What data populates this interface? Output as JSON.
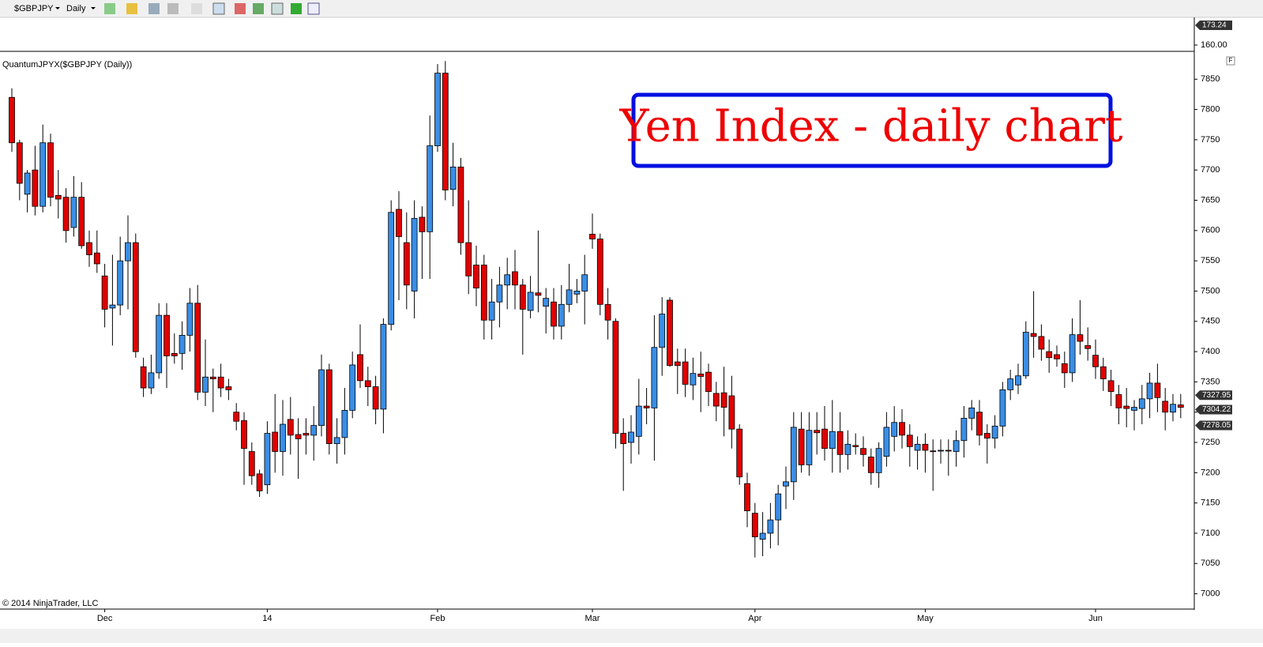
{
  "toolbar": {
    "symbol": "$GBPJPY",
    "interval": "Daily"
  },
  "upper_panel": {
    "ylim": [
      156.3,
      176.95
    ],
    "yticks": [
      {
        "value": 160,
        "label": "160.00"
      }
    ],
    "last_price": 173.24
  },
  "chart_data": {
    "type": "candlestick",
    "indicator": "QuantumJPYX($GBPJPY (Daily))",
    "annotation": "Yen Index - daily chart",
    "copyright": "© 2014 NinjaTrader, LLC",
    "up_color": "#3a8ee6",
    "down_color": "#e00000",
    "categories": [
      null,
      null,
      null,
      null,
      null,
      null,
      null,
      null,
      null,
      null,
      null,
      null,
      "Dec",
      null,
      null,
      null,
      null,
      null,
      null,
      null,
      null,
      null,
      null,
      null,
      null,
      null,
      null,
      null,
      null,
      null,
      null,
      null,
      null,
      "14",
      null,
      null,
      null,
      null,
      null,
      null,
      null,
      null,
      null,
      null,
      null,
      null,
      null,
      null,
      null,
      null,
      null,
      null,
      null,
      null,
      null,
      "Feb",
      null,
      null,
      null,
      null,
      null,
      null,
      null,
      null,
      null,
      null,
      null,
      null,
      null,
      null,
      null,
      null,
      null,
      null,
      null,
      "Mar",
      null,
      null,
      null,
      null,
      null,
      null,
      null,
      null,
      null,
      null,
      null,
      null,
      null,
      null,
      null,
      null,
      null,
      null,
      null,
      null,
      "Apr",
      null,
      null,
      null,
      null,
      null,
      null,
      null,
      null,
      null,
      null,
      null,
      null,
      null,
      null,
      null,
      null,
      null,
      null,
      null,
      null,
      null,
      "May",
      null,
      null,
      null,
      null,
      null,
      null,
      null,
      null,
      null,
      null,
      null,
      null,
      null,
      null,
      null,
      null,
      null,
      null,
      null,
      null,
      null,
      "Jun",
      null,
      null,
      null,
      null,
      null,
      null,
      null,
      null,
      null,
      null,
      null
    ],
    "open": [
      7820,
      7745,
      7660,
      7700,
      7640,
      7745,
      7658,
      7655,
      7605,
      7655,
      7580,
      7563,
      7525,
      7472,
      7477,
      7550,
      7580,
      7375,
      7340,
      7365,
      7460,
      7397,
      7397,
      7427,
      7480,
      7333,
      7358,
      7358,
      7342,
      7300,
      7286,
      7235,
      7198,
      7180,
      7267,
      7235,
      7288,
      7263,
      7265,
      7262,
      7278,
      7370,
      7248,
      7258,
      7303,
      7395,
      7352,
      7342,
      7305,
      7445,
      7635,
      7580,
      7500,
      7622,
      7598,
      7740,
      7860,
      7668,
      7705,
      7580,
      7543,
      7543,
      7452,
      7482,
      7510,
      7532,
      7510,
      7468,
      7497,
      7475,
      7482,
      7442,
      7478,
      7495,
      7500,
      7594,
      7586,
      7478,
      7450,
      7265,
      7250,
      7260,
      7310,
      7307,
      7407,
      7485,
      7383,
      7383,
      7345,
      7363,
      7366,
      7331,
      7332,
      7327,
      7272,
      7182,
      7133,
      7090,
      7100,
      7122,
      7178,
      7185,
      7272,
      7213,
      7270,
      7272,
      7240,
      7268,
      7230,
      7245,
      7240,
      7226,
      7200,
      7227,
      7260,
      7283,
      7262,
      7237,
      7247,
      7236,
      7236,
      7237,
      7235,
      7253,
      7290,
      7300,
      7265,
      7257,
      7277,
      7337,
      7345,
      7360,
      7430,
      7425,
      7400,
      7395,
      7380,
      7365,
      7428,
      7410,
      7394,
      7375,
      7352,
      7329,
      7310,
      7303,
      7306,
      7322,
      7348,
      7318,
      7300,
      7312
    ],
    "high": [
      7835,
      7750,
      7700,
      7740,
      7775,
      7760,
      7700,
      7670,
      7690,
      7680,
      7600,
      7600,
      7545,
      7560,
      7590,
      7625,
      7595,
      7390,
      7395,
      7480,
      7480,
      7430,
      7450,
      7505,
      7510,
      7420,
      7372,
      7380,
      7355,
      7315,
      7300,
      7250,
      7205,
      7285,
      7330,
      7320,
      7325,
      7290,
      7290,
      7310,
      7395,
      7380,
      7290,
      7340,
      7400,
      7445,
      7375,
      7360,
      7455,
      7650,
      7665,
      7630,
      7650,
      7640,
      7790,
      7875,
      7880,
      7745,
      7720,
      7650,
      7575,
      7560,
      7520,
      7540,
      7555,
      7568,
      7520,
      7525,
      7600,
      7505,
      7505,
      7510,
      7545,
      7520,
      7560,
      7628,
      7595,
      7505,
      7455,
      7290,
      7295,
      7355,
      7340,
      7460,
      7490,
      7490,
      7405,
      7405,
      7390,
      7400,
      7380,
      7350,
      7375,
      7360,
      7280,
      7200,
      7150,
      7135,
      7150,
      7180,
      7210,
      7300,
      7300,
      7300,
      7300,
      7310,
      7320,
      7300,
      7270,
      7265,
      7260,
      7240,
      7250,
      7300,
      7310,
      7305,
      7280,
      7260,
      7265,
      7255,
      7255,
      7255,
      7270,
      7310,
      7320,
      7320,
      7280,
      7295,
      7350,
      7370,
      7380,
      7450,
      7500,
      7445,
      7420,
      7410,
      7400,
      7455,
      7485,
      7440,
      7420,
      7390,
      7370,
      7345,
      7340,
      7320,
      7345,
      7365,
      7380,
      7340,
      7330,
      7330
    ],
    "low": [
      7730,
      7650,
      7630,
      7625,
      7630,
      7640,
      7620,
      7580,
      7590,
      7570,
      7540,
      7530,
      7440,
      7410,
      7460,
      7470,
      7390,
      7325,
      7330,
      7355,
      7340,
      7380,
      7370,
      7400,
      7320,
      7310,
      7300,
      7325,
      7320,
      7270,
      7180,
      7180,
      7160,
      7165,
      7200,
      7195,
      7230,
      7190,
      7230,
      7220,
      7260,
      7230,
      7215,
      7230,
      7290,
      7340,
      7310,
      7280,
      7265,
      7435,
      7485,
      7470,
      7455,
      7520,
      7520,
      7730,
      7650,
      7640,
      7560,
      7495,
      7475,
      7420,
      7420,
      7440,
      7470,
      7470,
      7395,
      7455,
      7465,
      7430,
      7420,
      7420,
      7465,
      7480,
      7445,
      7570,
      7460,
      7420,
      7240,
      7170,
      7215,
      7230,
      7280,
      7220,
      7360,
      7375,
      7330,
      7325,
      7320,
      7300,
      7310,
      7285,
      7260,
      7240,
      7180,
      7110,
      7060,
      7062,
      7075,
      7080,
      7140,
      7155,
      7200,
      7195,
      7230,
      7220,
      7200,
      7200,
      7205,
      7230,
      7210,
      7180,
      7175,
      7210,
      7235,
      7240,
      7210,
      7205,
      7200,
      7170,
      7215,
      7195,
      7210,
      7225,
      7270,
      7245,
      7215,
      7240,
      7260,
      7320,
      7330,
      7355,
      7390,
      7385,
      7365,
      7375,
      7340,
      7350,
      7395,
      7385,
      7355,
      7335,
      7310,
      7280,
      7275,
      7270,
      7280,
      7290,
      7300,
      7270,
      7285,
      7290
    ],
    "close": [
      7745,
      7678,
      7695,
      7640,
      7745,
      7655,
      7652,
      7600,
      7655,
      7575,
      7560,
      7545,
      7470,
      7477,
      7550,
      7580,
      7400,
      7340,
      7365,
      7460,
      7393,
      7393,
      7427,
      7480,
      7333,
      7358,
      7355,
      7340,
      7337,
      7285,
      7240,
      7195,
      7170,
      7265,
      7235,
      7280,
      7262,
      7256,
      7262,
      7278,
      7370,
      7248,
      7258,
      7303,
      7378,
      7352,
      7342,
      7305,
      7445,
      7630,
      7590,
      7510,
      7620,
      7598,
      7740,
      7860,
      7667,
      7705,
      7580,
      7525,
      7505,
      7452,
      7482,
      7510,
      7527,
      7510,
      7470,
      7498,
      7493,
      7488,
      7442,
      7478,
      7502,
      7500,
      7527,
      7586,
      7478,
      7452,
      7265,
      7248,
      7267,
      7310,
      7307,
      7407,
      7462,
      7377,
      7377,
      7346,
      7364,
      7359,
      7334,
      7310,
      7308,
      7272,
      7193,
      7137,
      7094,
      7100,
      7122,
      7165,
      7185,
      7275,
      7213,
      7270,
      7266,
      7240,
      7268,
      7230,
      7247,
      7243,
      7230,
      7200,
      7240,
      7275,
      7283,
      7262,
      7243,
      7247,
      7237,
      7235,
      7237,
      7236,
      7253,
      7290,
      7307,
      7262,
      7257,
      7277,
      7337,
      7355,
      7360,
      7432,
      7425,
      7404,
      7390,
      7388,
      7365,
      7428,
      7417,
      7405,
      7375,
      7355,
      7334,
      7307,
      7306,
      7308,
      7322,
      7348,
      7324,
      7300,
      7313,
      7308
    ],
    "ylim": [
      6976,
      7896
    ],
    "yticks": [
      7000,
      7050,
      7100,
      7150,
      7200,
      7250,
      7300,
      7350,
      7400,
      7450,
      7500,
      7550,
      7600,
      7650,
      7700,
      7750,
      7800,
      7850
    ],
    "price_markers": [
      7327.95,
      7304.22,
      7278.05
    ]
  }
}
